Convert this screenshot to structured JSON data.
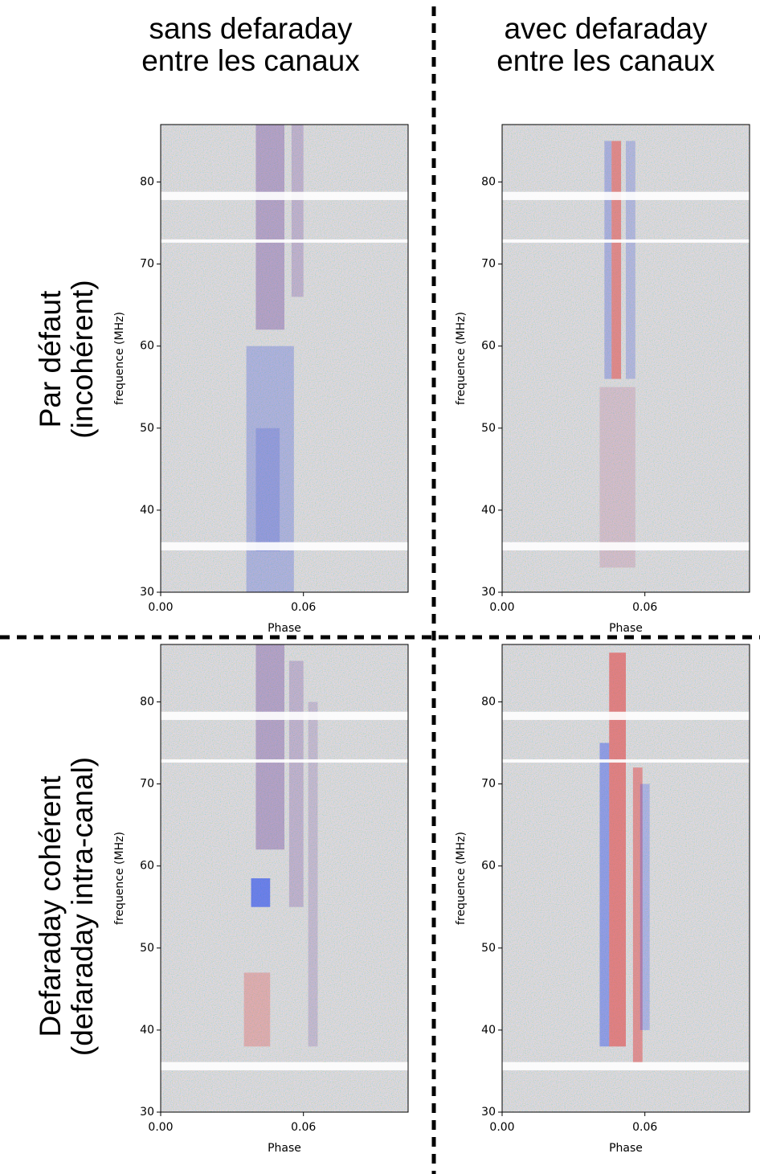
{
  "columns": [
    "sans defaraday\nentre les canaux",
    "avec defaraday\nentre les canaux"
  ],
  "rows": [
    "Par défaut\n(incohérent)",
    "Defaraday cohérent\n(defaraday intra-canal)"
  ],
  "chart_data": [
    {
      "type": "spectrogram",
      "xlabel": "Phase",
      "ylabel": "frequence (MHz)",
      "xlim": [
        0,
        0.104
      ],
      "ylim": [
        30,
        87
      ],
      "xticks": [
        {
          "value": 0,
          "label": "0.00"
        },
        0.06
      ],
      "yticks": [
        30,
        40,
        50,
        60,
        70,
        80
      ]
    },
    {
      "type": "spectrogram",
      "xlabel": "Phase",
      "ylabel": "frequence (MHz)",
      "xlim": [
        0,
        0.104
      ],
      "ylim": [
        30,
        87
      ],
      "xticks": [
        {
          "value": 0,
          "label": "0.00"
        },
        0.06
      ],
      "yticks": [
        30,
        40,
        50,
        60,
        70,
        80
      ]
    },
    {
      "type": "spectrogram",
      "xlabel": "Phase",
      "ylabel": "frequence (MHz)",
      "xlim": [
        0,
        0.104
      ],
      "ylim": [
        30,
        87
      ],
      "xticks": [
        {
          "value": 0,
          "label": "0.00"
        },
        0.06
      ],
      "yticks": [
        30,
        40,
        50,
        60,
        70,
        80
      ]
    },
    {
      "type": "spectrogram",
      "xlabel": "Phase",
      "ylabel": "frequence (MHz)",
      "xlim": [
        0,
        0.104
      ],
      "ylim": [
        30,
        87
      ],
      "xticks": [
        {
          "value": 0,
          "label": "0.00"
        },
        0.06
      ],
      "yticks": [
        30,
        40,
        50,
        60,
        70,
        80
      ]
    }
  ]
}
